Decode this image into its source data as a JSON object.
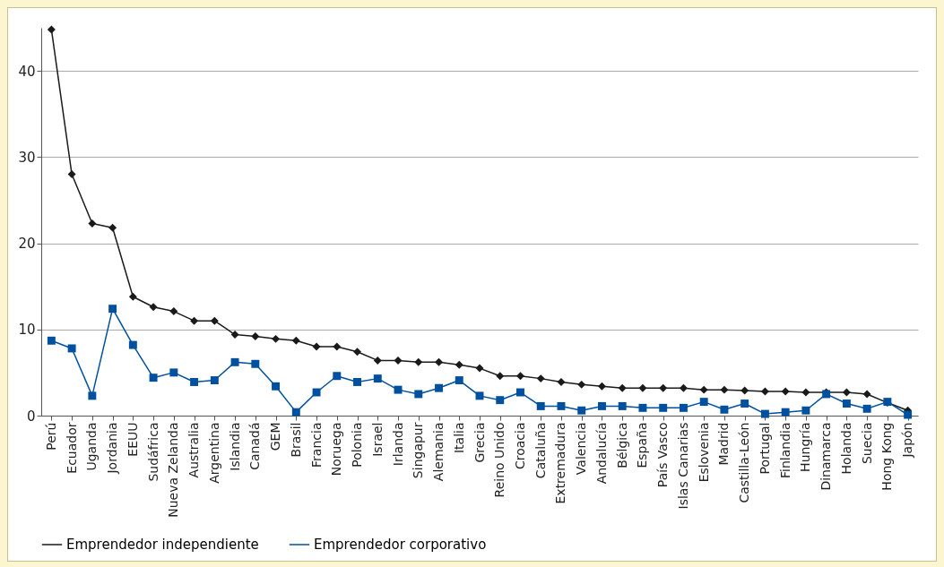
{
  "chart_data": {
    "type": "line",
    "categories": [
      "Perú",
      "Ecuador",
      "Uganda",
      "Jordania",
      "EEUU",
      "Sudáfrica",
      "Nueva Zelanda",
      "Australia",
      "Argentina",
      "Islandia",
      "Canadá",
      "GEM",
      "Brasil",
      "Francia",
      "Noruega",
      "Polonia",
      "Israel",
      "Irlanda",
      "Singapur",
      "Alemania",
      "Italia",
      "Grecia",
      "Reino Unido",
      "Croacia",
      "Cataluña",
      "Extremadura",
      "Valencia",
      "Andalucía",
      "Bélgica",
      "España",
      "País Vasco",
      "Islas Canarias",
      "Eslovenia",
      "Madrid",
      "Castilla-León",
      "Portugal",
      "Finlandia",
      "Hungría",
      "Dinamarca",
      "Holanda",
      "Suecia",
      "Hong Kong",
      "Japón"
    ],
    "series": [
      {
        "name": "Emprendedor independiente",
        "color": "#1a1a1a",
        "marker": "diamond",
        "values": [
          44.8,
          28,
          22.3,
          21.8,
          13.8,
          12.6,
          12.1,
          11,
          11,
          9.4,
          9.2,
          8.9,
          8.7,
          8,
          8,
          7.4,
          6.4,
          6.4,
          6.2,
          6.2,
          5.9,
          5.5,
          4.6,
          4.6,
          4.3,
          3.9,
          3.6,
          3.4,
          3.2,
          3.2,
          3.2,
          3.2,
          3,
          3,
          2.9,
          2.8,
          2.8,
          2.7,
          2.7,
          2.7,
          2.5,
          1.5,
          0.6
        ]
      },
      {
        "name": "Emprendedor corporativo",
        "color": "#0050a0",
        "marker": "square",
        "values": [
          8.7,
          7.8,
          2.3,
          12.4,
          8.2,
          4.4,
          5,
          3.9,
          4.1,
          6.2,
          6,
          3.4,
          0.4,
          2.7,
          4.6,
          3.9,
          4.3,
          3,
          2.5,
          3.2,
          4.1,
          2.3,
          1.8,
          2.7,
          1.1,
          1.1,
          0.6,
          1.1,
          1.1,
          0.9,
          0.9,
          0.9,
          1.6,
          0.7,
          1.4,
          0.2,
          0.4,
          0.6,
          2.5,
          1.4,
          0.8,
          1.6,
          0.1
        ]
      }
    ],
    "ylim": [
      0,
      45
    ],
    "yticks": [
      0,
      10,
      20,
      30,
      40
    ],
    "grid": "y",
    "legend": "bottom",
    "line_style": "solid"
  }
}
